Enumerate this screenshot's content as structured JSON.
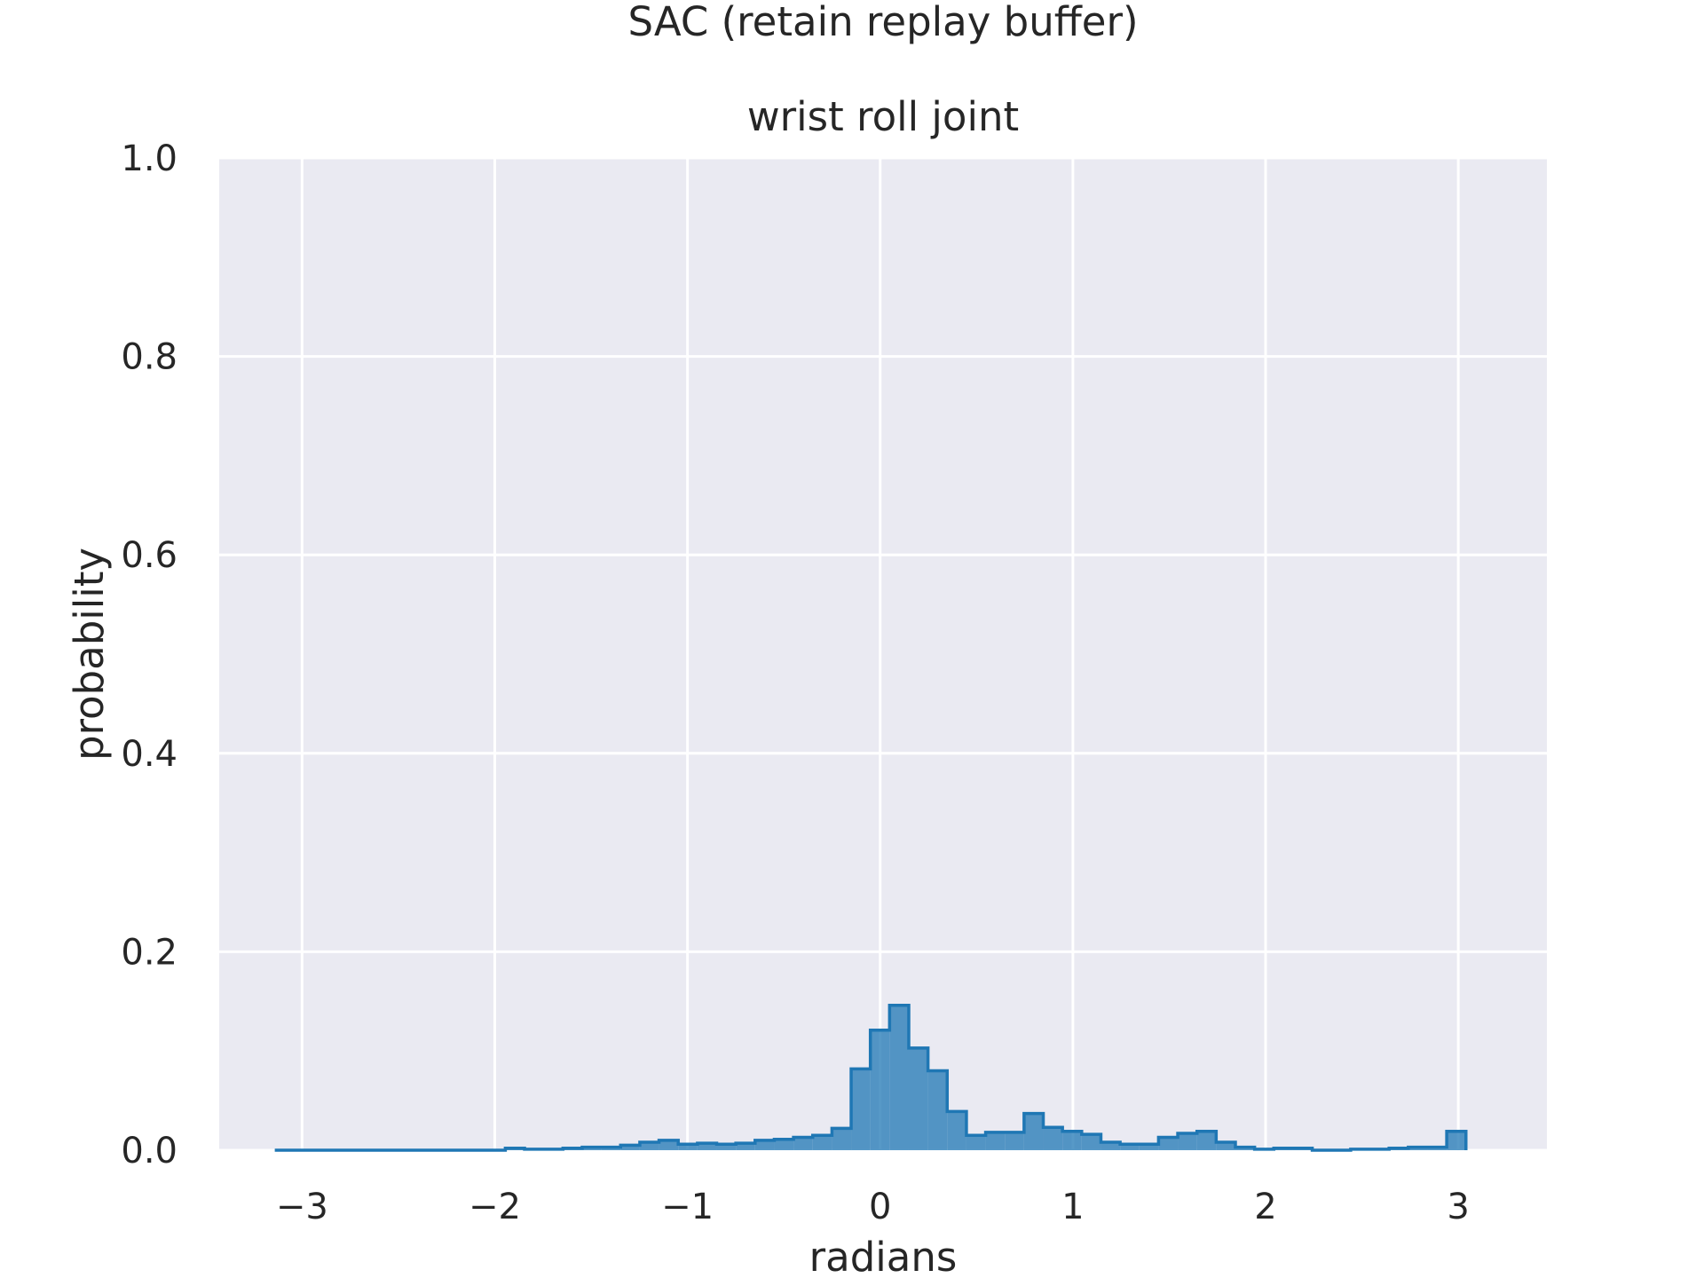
{
  "chart_data": {
    "type": "histogram-step",
    "suptitle": "SAC (retain replay buffer)",
    "title": "wrist roll joint",
    "xlabel": "radians",
    "ylabel": "probability",
    "xlim": [
      -3.43,
      3.46
    ],
    "ylim": [
      0.0,
      1.0
    ],
    "xticks": [
      -3,
      -2,
      -1,
      0,
      1,
      2,
      3
    ],
    "xtick_labels": [
      "−3",
      "−2",
      "−1",
      "0",
      "1",
      "2",
      "3"
    ],
    "yticks": [
      0.0,
      0.2,
      0.4,
      0.6,
      0.8,
      1.0
    ],
    "ytick_labels": [
      "0.0",
      "0.2",
      "0.4",
      "0.6",
      "0.8",
      "1.0"
    ],
    "grid": true,
    "facecolor": "#eaeaf2",
    "bar_color": "#1f77b4",
    "bin_start": -3.1416,
    "bin_width": 0.0997,
    "values": [
      0.0,
      0.0,
      0.0,
      0.0,
      0.0,
      0.0,
      0.0,
      0.0,
      0.0,
      0.0,
      0.0,
      0.0,
      0.002,
      0.001,
      0.001,
      0.002,
      0.003,
      0.003,
      0.005,
      0.008,
      0.01,
      0.006,
      0.007,
      0.006,
      0.007,
      0.01,
      0.011,
      0.013,
      0.015,
      0.022,
      0.082,
      0.121,
      0.146,
      0.103,
      0.08,
      0.039,
      0.015,
      0.018,
      0.018,
      0.037,
      0.023,
      0.019,
      0.016,
      0.008,
      0.006,
      0.006,
      0.013,
      0.017,
      0.019,
      0.008,
      0.003,
      0.001,
      0.002,
      0.002,
      0.0,
      0.0,
      0.001,
      0.001,
      0.002,
      0.003,
      0.003,
      0.019
    ]
  }
}
